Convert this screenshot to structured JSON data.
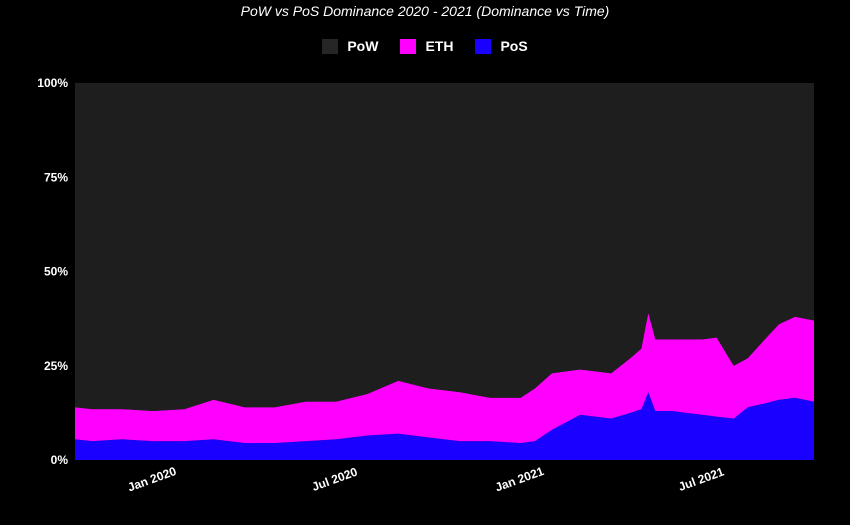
{
  "chart_data": {
    "type": "area",
    "stacked": true,
    "percent": true,
    "title": "PoW vs PoS Dominance 2020 - 2021 (Dominance vs Time)",
    "xlabel": "",
    "ylabel": "",
    "ylim": [
      0,
      100
    ],
    "yticks": [
      {
        "value": 0,
        "label": "0%"
      },
      {
        "value": 25,
        "label": "25%"
      },
      {
        "value": 50,
        "label": "50%"
      },
      {
        "value": 75,
        "label": "75%"
      },
      {
        "value": 100,
        "label": "100%"
      }
    ],
    "xlim": [
      "2019-10-15",
      "2021-10-20"
    ],
    "xticks": [
      {
        "date": "2020-01-01",
        "label": "Jan 2020"
      },
      {
        "date": "2020-07-01",
        "label": "Jul 2020"
      },
      {
        "date": "2021-01-01",
        "label": "Jan 2021"
      },
      {
        "date": "2021-07-01",
        "label": "Jul 2021"
      }
    ],
    "legend_position": "top-center",
    "grid": false,
    "background": "#1e1e1e",
    "x": [
      "2019-10-15",
      "2019-11-01",
      "2019-12-01",
      "2020-01-01",
      "2020-02-01",
      "2020-03-01",
      "2020-04-01",
      "2020-05-01",
      "2020-06-01",
      "2020-07-01",
      "2020-08-01",
      "2020-09-01",
      "2020-10-01",
      "2020-11-01",
      "2020-12-01",
      "2021-01-01",
      "2021-01-15",
      "2021-02-01",
      "2021-03-01",
      "2021-04-01",
      "2021-04-20",
      "2021-05-01",
      "2021-05-08",
      "2021-05-15",
      "2021-06-01",
      "2021-06-15",
      "2021-07-01",
      "2021-07-15",
      "2021-08-01",
      "2021-08-15",
      "2021-09-01",
      "2021-09-15",
      "2021-10-01",
      "2021-10-20"
    ],
    "series": [
      {
        "name": "PoS",
        "color": "#1a00ff",
        "values": [
          5.5,
          5.0,
          5.5,
          5.0,
          5.0,
          5.5,
          4.5,
          4.5,
          5.0,
          5.5,
          6.5,
          7.0,
          6.0,
          5.0,
          5.0,
          4.5,
          5.0,
          8.0,
          12.0,
          11.0,
          12.5,
          13.5,
          18.0,
          13.0,
          13.0,
          12.5,
          12.0,
          11.5,
          11.0,
          14.0,
          15.0,
          16.0,
          16.5,
          15.5
        ]
      },
      {
        "name": "ETH",
        "color": "#ff00ff",
        "values": [
          8.5,
          8.5,
          8.0,
          8.0,
          8.5,
          10.5,
          9.5,
          9.5,
          10.5,
          10.0,
          11.0,
          14.0,
          13.0,
          13.0,
          11.5,
          12.0,
          14.0,
          15.0,
          12.0,
          12.0,
          14.5,
          16.0,
          21.0,
          19.0,
          19.0,
          19.5,
          20.0,
          21.0,
          14.0,
          13.0,
          17.0,
          20.0,
          21.5,
          21.5
        ]
      },
      {
        "name": "PoW",
        "color": "#1e1e1e",
        "values": [
          86.0,
          86.5,
          86.5,
          87.0,
          86.5,
          84.0,
          86.0,
          86.0,
          84.5,
          84.5,
          82.5,
          79.0,
          81.0,
          82.0,
          83.5,
          83.5,
          81.0,
          77.0,
          76.0,
          77.0,
          73.0,
          70.5,
          61.0,
          68.0,
          68.0,
          68.0,
          68.0,
          67.5,
          75.0,
          73.0,
          68.0,
          64.0,
          62.0,
          63.0
        ]
      }
    ]
  }
}
